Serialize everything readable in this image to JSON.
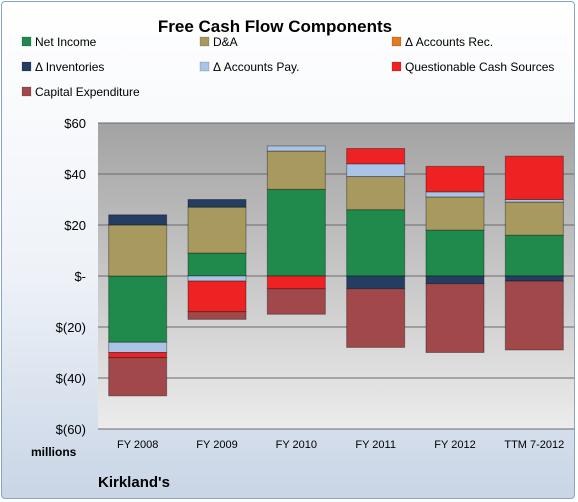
{
  "chart_data": {
    "type": "bar",
    "stacked": true,
    "title": "Free Cash Flow Components",
    "unit_label": "millions",
    "company": "Kirkland's",
    "categories": [
      "FY 2008",
      "FY 2009",
      "FY 2010",
      "FY 2011",
      "FY 2012",
      "TTM 7-2012"
    ],
    "ylim": [
      -60,
      60
    ],
    "y_ticks": [
      60,
      40,
      20,
      0,
      -20,
      -40,
      -60
    ],
    "y_tick_labels": [
      "$60",
      "$40",
      "$20",
      "$-",
      "$(20)",
      "$(40)",
      "$(60)"
    ],
    "grid": true,
    "legend_position": "top",
    "series": [
      {
        "name": "Net Income",
        "color": "#1f8a4c",
        "values": [
          -26,
          9,
          34,
          26,
          18,
          16
        ]
      },
      {
        "name": "D&A",
        "color": "#a89a5e",
        "values": [
          20,
          18,
          15,
          13,
          13,
          13
        ]
      },
      {
        "name": "Δ Accounts Rec.",
        "color": "#e07b20",
        "values": [
          0,
          0,
          0,
          0,
          0,
          0
        ]
      },
      {
        "name": "Δ Inventories",
        "color": "#243d63",
        "values": [
          4,
          3,
          0,
          -5,
          -3,
          -2
        ]
      },
      {
        "name": "Δ Accounts Pay.",
        "color": "#a9c4e6",
        "values": [
          -4,
          -2,
          2,
          5,
          2,
          1
        ]
      },
      {
        "name": "Questionable Cash Sources",
        "color": "#ee2222",
        "values": [
          -2,
          -12,
          -5,
          6,
          10,
          17
        ]
      },
      {
        "name": "Capital Expenditure",
        "color": "#a0484a",
        "values": [
          -15,
          -3,
          -10,
          -23,
          -27,
          -27
        ]
      }
    ]
  }
}
